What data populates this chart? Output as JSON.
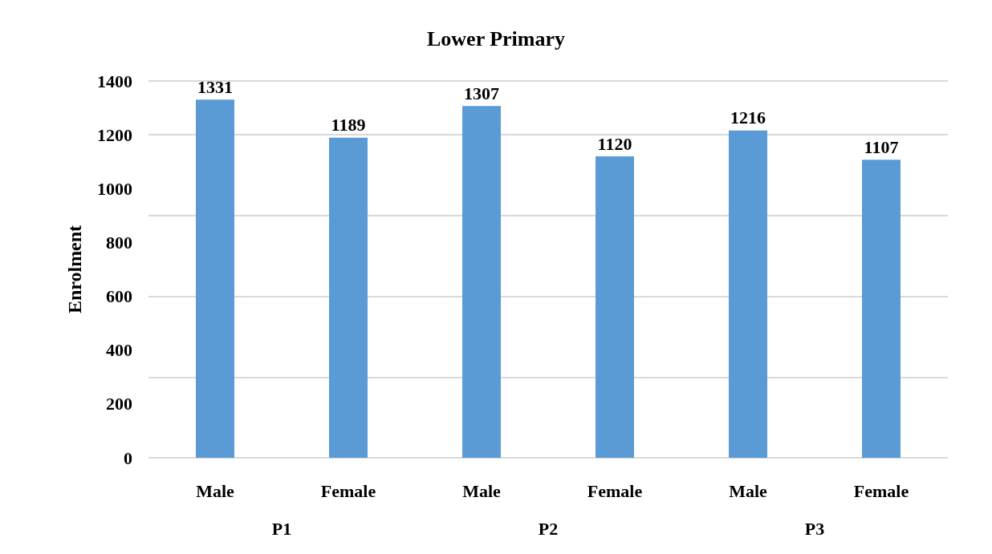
{
  "chart_data": {
    "type": "bar",
    "title": "Lower Primary",
    "ylabel": "Enrolment",
    "categories": [
      "Male",
      "Female",
      "Male",
      "Female",
      "Male",
      "Female"
    ],
    "values": [
      1331,
      1189,
      1307,
      1120,
      1216,
      1107
    ],
    "color": "#5b9bd5",
    "ylim": [
      0,
      1400
    ],
    "yticks": [
      0,
      200,
      400,
      600,
      800,
      1000,
      1200,
      1400
    ],
    "grid": "y",
    "data_labels": true,
    "annotations": [
      "P1",
      "P2",
      "P3"
    ]
  }
}
